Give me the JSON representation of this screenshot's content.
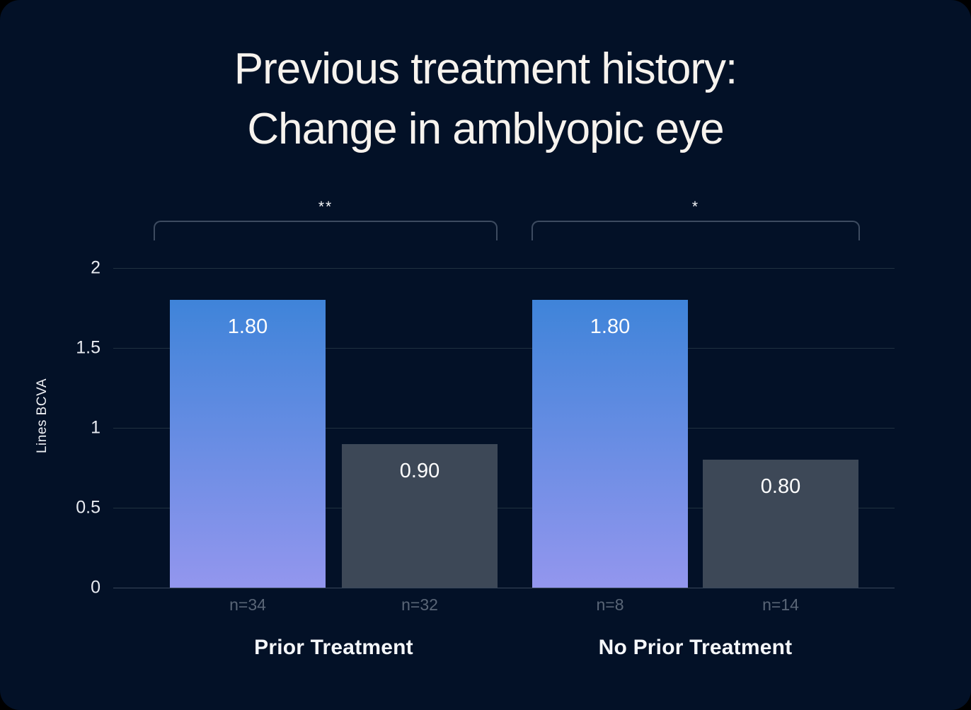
{
  "page": {
    "background": "#000000",
    "card_background": "#031127"
  },
  "header": {
    "title_line1": "Previous treatment history:",
    "title_line2": "Change in amblyopic eye"
  },
  "chart_data": {
    "type": "bar",
    "title": "Previous treatment history: Change in amblyopic eye",
    "ylabel": "Lines BCVA",
    "xlabel": "",
    "ylim": [
      0,
      2
    ],
    "yticks": [
      "2",
      "1.5",
      "1",
      "0.5",
      "0"
    ],
    "ytick_values": [
      2,
      1.5,
      1,
      0.5,
      0
    ],
    "grid": true,
    "groups": [
      {
        "label": "Prior Treatment",
        "significance": "**",
        "bars": [
          {
            "value": 1.8,
            "label": "1.80",
            "n": "n=34",
            "style": "blue-gradient"
          },
          {
            "value": 0.9,
            "label": "0.90",
            "n": "n=32",
            "style": "gray"
          }
        ]
      },
      {
        "label": "No Prior Treatment",
        "significance": "*",
        "bars": [
          {
            "value": 1.8,
            "label": "1.80",
            "n": "n=8",
            "style": "blue-gradient"
          },
          {
            "value": 0.8,
            "label": "0.80",
            "n": "n=14",
            "style": "gray"
          }
        ]
      }
    ],
    "colors": {
      "bar_gradient_top": "#3f84d9",
      "bar_gradient_bottom": "#9396ee",
      "bar_gray": "#3d4857",
      "gridline": "#203140",
      "baseline": "#7d8a99",
      "tick_label": "#e8ebf1",
      "n_label": "#5a6677",
      "title_text": "#f7f3ee"
    }
  }
}
